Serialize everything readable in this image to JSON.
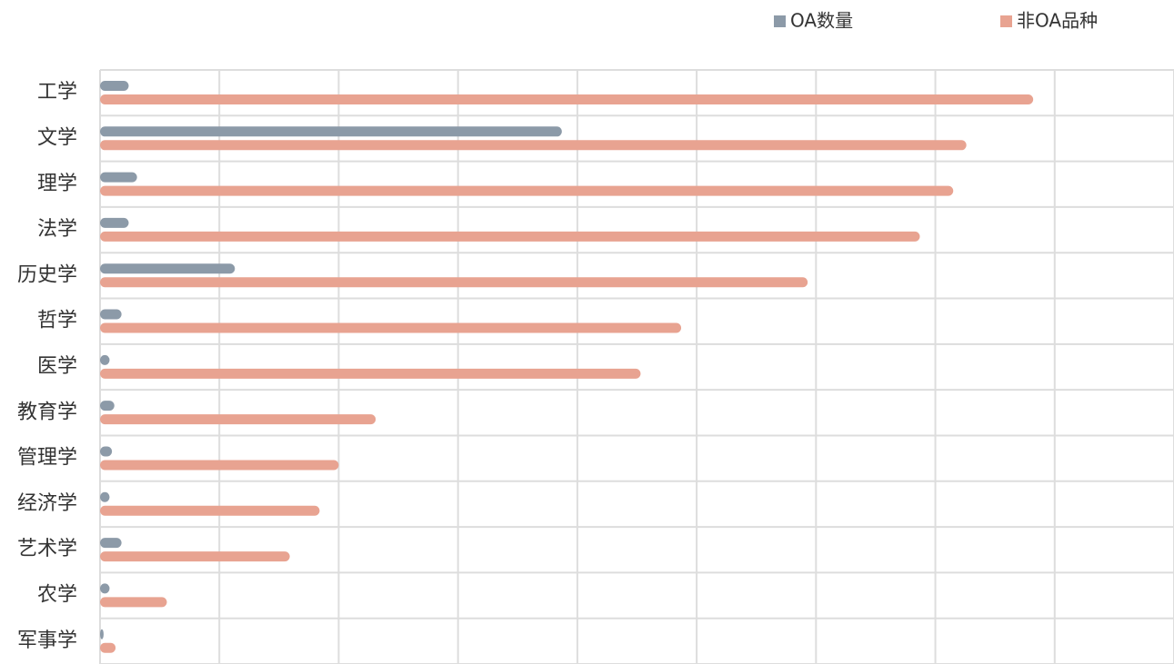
{
  "chart_data": {
    "type": "hbar",
    "categories": [
      "工学",
      "文学",
      "理学",
      "法学",
      "历史学",
      "哲学",
      "医学",
      "教育学",
      "管理学",
      "经济学",
      "艺术学",
      "农学",
      "军事学"
    ],
    "series": [
      {
        "name": "OA数量",
        "color": "#8c9aa8",
        "values": [
          0.24,
          3.87,
          0.31,
          0.24,
          1.13,
          0.18,
          0.08,
          0.12,
          0.1,
          0.08,
          0.18,
          0.08,
          0.03
        ]
      },
      {
        "name": "非OA品种",
        "color": "#e8a391",
        "values": [
          7.82,
          7.26,
          7.15,
          6.87,
          5.93,
          4.87,
          4.53,
          2.31,
          2.0,
          1.84,
          1.59,
          0.56,
          0.13
        ]
      }
    ],
    "xlim": [
      0,
      9
    ],
    "xticks": [
      0,
      1,
      2,
      3,
      4,
      5,
      6,
      7,
      8,
      9
    ],
    "grid": true,
    "legend": "top-right"
  }
}
